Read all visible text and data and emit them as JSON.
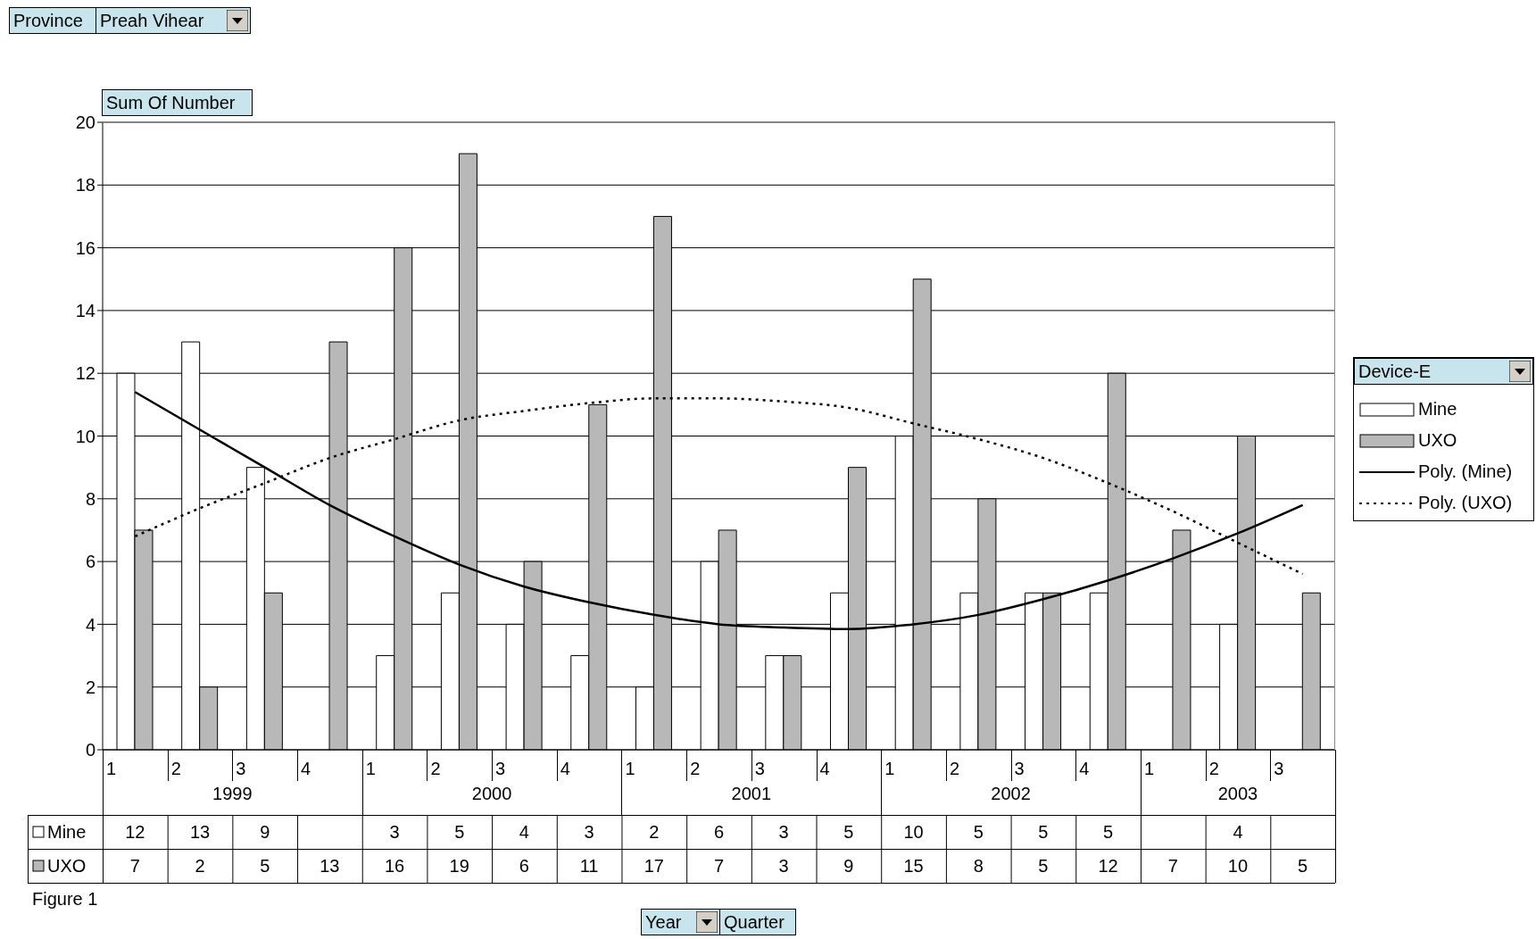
{
  "chart_data": {
    "type": "bar",
    "categories": [
      "1",
      "2",
      "3",
      "4",
      "1",
      "2",
      "3",
      "4",
      "1",
      "2",
      "3",
      "4",
      "1",
      "2",
      "3",
      "4",
      "1",
      "2",
      "3"
    ],
    "series": [
      {
        "name": "Mine",
        "color": "#ffffff",
        "values": [
          12,
          13,
          9,
          null,
          3,
          5,
          4,
          3,
          2,
          6,
          3,
          5,
          10,
          5,
          5,
          5,
          null,
          4,
          null
        ],
        "value_labels": [
          "12",
          "13",
          "9",
          null,
          "3",
          "5",
          "4",
          "3",
          "2",
          "6",
          "3",
          "5",
          "10",
          "5",
          "5",
          "5",
          null,
          "4",
          null
        ]
      },
      {
        "name": "UXO",
        "color": "#b8b8b8",
        "values": [
          7,
          2,
          5,
          13,
          16,
          19,
          6,
          11,
          17,
          7,
          3,
          9,
          15,
          8,
          5,
          12,
          7,
          10,
          5
        ],
        "value_labels": [
          "7",
          "2",
          "5",
          "13",
          "16",
          "19",
          "6",
          "11",
          "17",
          "7",
          "3",
          "9",
          "15",
          "8",
          "5",
          "12",
          "7",
          "10",
          "5"
        ]
      },
      {
        "name": "Poly. (Mine)",
        "type": "line",
        "color": "#000000",
        "line_style": "solid",
        "values": [
          11.4,
          10.2,
          9.0,
          7.8,
          6.8,
          5.9,
          5.2,
          4.7,
          4.3,
          4.0,
          3.9,
          3.85,
          4.0,
          4.3,
          4.8,
          5.4,
          6.1,
          6.9,
          7.8
        ]
      },
      {
        "name": "Poly. (UXO)",
        "type": "line",
        "color": "#000000",
        "line_style": "dotted",
        "values": [
          6.8,
          7.7,
          8.5,
          9.3,
          9.9,
          10.5,
          10.8,
          11.05,
          11.2,
          11.2,
          11.1,
          10.9,
          10.4,
          9.9,
          9.3,
          8.5,
          7.6,
          6.6,
          5.6
        ]
      }
    ],
    "ylim": [
      0,
      20
    ],
    "yticks": [
      0,
      2,
      4,
      6,
      8,
      10,
      12,
      14,
      16,
      18,
      20
    ],
    "grid": "y",
    "legend": "right",
    "legend_title": "Device-E",
    "marker": "none",
    "annotations": [
      "Province",
      "Preah Vihear",
      "Sum Of Number",
      "1999",
      "2000",
      "2001",
      "2002",
      "2003",
      "Figure 1",
      "Year",
      "Quarter"
    ]
  }
}
